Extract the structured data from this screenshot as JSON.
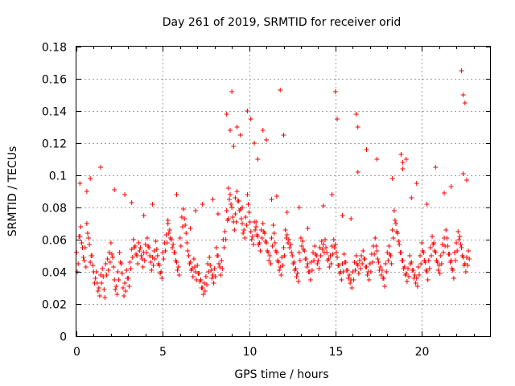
{
  "chart_data": {
    "type": "scatter",
    "title": "Day 261 of 2019, SRMTID for receiver orid",
    "xlabel": "GPS time / hours",
    "ylabel": "SRMTID / TECUs",
    "xlim": [
      0,
      24
    ],
    "ylim": [
      0,
      0.18
    ],
    "x_ticks": [
      0,
      5,
      10,
      15,
      20
    ],
    "x_tick_labels": [
      "0",
      "5",
      "10",
      "15",
      "20"
    ],
    "y_ticks": [
      0,
      0.02,
      0.04,
      0.06,
      0.08,
      0.1,
      0.12,
      0.14,
      0.16,
      0.18
    ],
    "y_tick_labels": [
      "0",
      "0.02",
      "0.04",
      "0.06",
      "0.08",
      "0.1",
      "0.12",
      "0.14",
      "0.16",
      "0.18"
    ],
    "grid": true,
    "marker": "+",
    "color": "#ff0000",
    "series": [
      {
        "name": "SRMTID",
        "x": [
          0.0,
          0.1,
          0.2,
          0.3,
          0.4,
          0.5,
          0.6,
          0.7,
          0.8,
          0.9,
          1.0,
          1.1,
          1.2,
          1.3,
          1.4,
          1.5,
          1.6,
          1.7,
          1.8,
          1.9,
          2.0,
          2.1,
          2.2,
          2.3,
          2.4,
          2.5,
          2.6,
          2.7,
          2.8,
          2.9,
          3.0,
          3.1,
          3.2,
          3.3,
          3.4,
          3.5,
          3.6,
          3.7,
          3.8,
          3.9,
          4.0,
          4.1,
          4.2,
          4.3,
          4.4,
          4.5,
          4.6,
          4.7,
          4.8,
          4.9,
          5.0,
          5.1,
          5.2,
          5.3,
          5.4,
          5.5,
          5.6,
          5.7,
          5.8,
          5.9,
          6.0,
          6.1,
          6.2,
          6.3,
          6.4,
          6.5,
          6.6,
          6.7,
          6.8,
          6.9,
          7.0,
          7.1,
          7.2,
          7.3,
          7.4,
          7.5,
          7.6,
          7.7,
          7.8,
          7.9,
          8.0,
          8.1,
          8.2,
          8.3,
          8.4,
          8.5,
          8.6,
          8.7,
          8.8,
          8.9,
          9.0,
          9.1,
          9.2,
          9.3,
          9.4,
          9.5,
          9.6,
          9.7,
          9.8,
          9.9,
          10.0,
          10.1,
          10.2,
          10.3,
          10.4,
          10.5,
          10.6,
          10.7,
          10.8,
          10.9,
          11.0,
          11.1,
          11.2,
          11.3,
          11.4,
          11.5,
          11.6,
          11.7,
          11.8,
          11.9,
          12.0,
          12.1,
          12.2,
          12.3,
          12.4,
          12.5,
          12.6,
          12.7,
          12.8,
          12.9,
          13.0,
          13.1,
          13.2,
          13.3,
          13.4,
          13.5,
          13.6,
          13.7,
          13.8,
          13.9,
          14.0,
          14.1,
          14.2,
          14.3,
          14.4,
          14.5,
          14.6,
          14.7,
          14.8,
          14.9,
          15.0,
          15.1,
          15.2,
          15.3,
          15.4,
          15.5,
          15.6,
          15.7,
          15.8,
          15.9,
          16.0,
          16.1,
          16.2,
          16.3,
          16.4,
          16.5,
          16.6,
          16.7,
          16.8,
          16.9,
          17.0,
          17.1,
          17.2,
          17.3,
          17.4,
          17.5,
          17.6,
          17.7,
          17.8,
          17.9,
          18.0,
          18.1,
          18.2,
          18.3,
          18.4,
          18.5,
          18.6,
          18.7,
          18.8,
          18.9,
          19.0,
          19.1,
          19.2,
          19.3,
          19.4,
          19.5,
          19.6,
          19.7,
          19.8,
          19.9,
          20.0,
          20.1,
          20.2,
          20.3,
          20.4,
          20.5,
          20.6,
          20.7,
          20.8,
          20.9,
          21.0,
          21.1,
          21.2,
          21.3,
          21.4,
          21.5,
          21.6,
          21.7,
          21.8,
          21.9,
          22.0,
          22.1,
          22.2,
          22.3,
          22.4,
          22.5,
          22.6,
          22.7,
          0.05,
          0.15,
          0.25,
          0.35,
          0.45,
          0.55,
          0.65,
          0.75,
          0.85,
          0.95,
          1.05,
          1.15,
          1.25,
          1.35,
          1.45,
          1.55,
          1.65,
          1.75,
          1.85,
          1.95,
          2.05,
          2.15,
          2.25,
          2.35,
          2.45,
          2.55,
          2.65,
          2.75,
          2.85,
          2.95,
          3.05,
          3.15,
          3.25,
          3.35,
          3.45,
          3.55,
          3.65,
          3.75,
          3.85,
          3.95,
          4.05,
          4.15,
          4.25,
          4.35,
          4.45,
          4.55,
          4.65,
          4.75,
          4.85,
          4.95,
          5.05,
          5.15,
          5.25,
          5.35,
          5.45,
          5.55,
          5.65,
          5.75,
          5.85,
          5.95,
          6.05,
          6.15,
          6.25,
          6.35,
          6.45,
          6.55,
          6.65,
          6.75,
          6.85,
          6.95,
          7.05,
          7.15,
          7.25,
          7.35,
          7.45,
          7.55,
          7.65,
          7.75,
          7.85,
          7.95,
          8.05,
          8.15,
          8.25,
          8.35,
          8.45,
          8.55,
          8.65,
          8.75,
          8.85,
          8.95,
          9.05,
          9.15,
          9.25,
          9.35,
          9.45,
          9.55,
          9.65,
          9.75,
          9.85,
          9.95,
          10.05,
          10.15,
          10.25,
          10.35,
          10.45,
          10.55,
          10.65,
          10.75,
          10.85,
          10.95,
          11.05,
          11.15,
          11.25,
          11.35,
          11.45,
          11.55,
          11.65,
          11.75,
          11.85,
          11.95,
          12.05,
          12.15,
          12.25,
          12.35,
          12.45,
          12.55,
          12.65,
          12.75,
          12.85,
          12.95,
          13.05,
          13.15,
          13.25,
          13.35,
          13.45,
          13.55,
          13.65,
          13.75,
          13.85,
          13.95,
          14.05,
          14.15,
          14.25,
          14.35,
          14.45,
          14.55,
          14.65,
          14.75,
          14.85,
          14.95,
          15.05,
          15.15,
          15.25,
          15.35,
          15.45,
          15.55,
          15.65,
          15.75,
          15.85,
          15.95,
          16.05,
          16.15,
          16.25,
          16.35,
          16.45,
          16.55,
          16.65,
          16.75,
          16.85,
          16.95,
          17.05,
          17.15,
          17.25,
          17.35,
          17.45,
          17.55,
          17.65,
          17.75,
          17.85,
          17.95,
          18.05,
          18.15,
          18.25,
          18.35,
          18.45,
          18.55,
          18.65,
          18.75,
          18.85,
          18.95,
          19.05,
          19.15,
          19.25,
          19.35,
          19.45,
          19.55,
          19.65,
          19.75,
          19.85,
          19.95,
          20.05,
          20.15,
          20.25,
          20.35,
          20.45,
          20.55,
          20.65,
          20.75,
          20.85,
          20.95,
          21.05,
          21.15,
          21.25,
          21.35,
          21.45,
          21.55,
          21.65,
          21.75,
          21.85,
          21.95,
          22.05,
          22.15,
          22.25,
          22.35,
          22.45,
          22.55,
          22.65,
          22.75,
          0.2,
          0.6,
          0.8,
          1.4,
          2.2,
          2.8,
          3.2,
          3.9,
          4.4,
          5.3,
          5.8,
          6.6,
          6.9,
          7.3,
          7.9,
          8.2,
          8.8,
          9.2,
          9.6,
          10.4,
          11.3,
          11.6,
          12.2,
          12.9,
          13.4,
          14.3,
          14.8,
          15.4,
          15.9,
          16.3,
          16.8,
          17.4,
          18.3,
          18.9,
          19.4,
          19.7,
          20.3,
          20.8,
          21.3,
          21.7,
          22.4,
          22.6,
          8.7,
          8.9,
          9.0,
          9.1,
          9.3,
          9.5,
          9.9,
          10.1,
          10.3,
          10.5,
          10.8,
          11.0,
          11.8,
          12.0,
          15.0,
          15.1,
          16.2,
          16.3,
          18.8,
          18.9,
          19.1,
          22.3,
          22.4,
          22.5
        ],
        "y": [
          0.052,
          0.045,
          0.062,
          0.058,
          0.049,
          0.055,
          0.07,
          0.061,
          0.046,
          0.05,
          0.04,
          0.036,
          0.033,
          0.03,
          0.038,
          0.042,
          0.029,
          0.045,
          0.048,
          0.052,
          0.058,
          0.049,
          0.035,
          0.031,
          0.04,
          0.052,
          0.045,
          0.03,
          0.033,
          0.041,
          0.036,
          0.046,
          0.054,
          0.06,
          0.056,
          0.05,
          0.058,
          0.055,
          0.048,
          0.052,
          0.057,
          0.061,
          0.055,
          0.046,
          0.049,
          0.053,
          0.059,
          0.05,
          0.044,
          0.04,
          0.052,
          0.058,
          0.063,
          0.07,
          0.066,
          0.06,
          0.057,
          0.052,
          0.046,
          0.043,
          0.061,
          0.074,
          0.079,
          0.069,
          0.058,
          0.05,
          0.046,
          0.042,
          0.048,
          0.04,
          0.044,
          0.039,
          0.035,
          0.03,
          0.033,
          0.037,
          0.045,
          0.049,
          0.041,
          0.038,
          0.042,
          0.055,
          0.05,
          0.043,
          0.047,
          0.06,
          0.065,
          0.078,
          0.092,
          0.088,
          0.08,
          0.071,
          0.076,
          0.09,
          0.084,
          0.079,
          0.07,
          0.066,
          0.074,
          0.088,
          0.077,
          0.065,
          0.062,
          0.071,
          0.068,
          0.062,
          0.058,
          0.066,
          0.07,
          0.064,
          0.058,
          0.052,
          0.05,
          0.061,
          0.069,
          0.058,
          0.052,
          0.046,
          0.043,
          0.049,
          0.055,
          0.066,
          0.063,
          0.06,
          0.057,
          0.05,
          0.046,
          0.042,
          0.039,
          0.052,
          0.061,
          0.059,
          0.053,
          0.048,
          0.045,
          0.04,
          0.046,
          0.052,
          0.056,
          0.05,
          0.047,
          0.055,
          0.059,
          0.057,
          0.06,
          0.052,
          0.048,
          0.05,
          0.056,
          0.06,
          0.057,
          0.049,
          0.044,
          0.04,
          0.045,
          0.051,
          0.046,
          0.041,
          0.038,
          0.035,
          0.04,
          0.046,
          0.05,
          0.044,
          0.047,
          0.05,
          0.053,
          0.048,
          0.043,
          0.04,
          0.045,
          0.051,
          0.056,
          0.061,
          0.053,
          0.046,
          0.043,
          0.041,
          0.036,
          0.045,
          0.052,
          0.056,
          0.05,
          0.066,
          0.078,
          0.07,
          0.064,
          0.057,
          0.052,
          0.047,
          0.043,
          0.039,
          0.042,
          0.05,
          0.046,
          0.041,
          0.038,
          0.036,
          0.043,
          0.05,
          0.058,
          0.052,
          0.046,
          0.04,
          0.047,
          0.055,
          0.062,
          0.058,
          0.052,
          0.046,
          0.044,
          0.05,
          0.057,
          0.061,
          0.066,
          0.056,
          0.051,
          0.047,
          0.041,
          0.052,
          0.058,
          0.065,
          0.062,
          0.055,
          0.049,
          0.045,
          0.049,
          0.053,
          0.04,
          0.062,
          0.068,
          0.055,
          0.047,
          0.043,
          0.064,
          0.057,
          0.05,
          0.044,
          0.033,
          0.04,
          0.028,
          0.025,
          0.033,
          0.037,
          0.024,
          0.038,
          0.041,
          0.046,
          0.051,
          0.043,
          0.029,
          0.026,
          0.035,
          0.046,
          0.039,
          0.025,
          0.028,
          0.036,
          0.031,
          0.042,
          0.049,
          0.055,
          0.051,
          0.045,
          0.053,
          0.05,
          0.043,
          0.047,
          0.052,
          0.056,
          0.05,
          0.041,
          0.044,
          0.048,
          0.054,
          0.045,
          0.039,
          0.036,
          0.048,
          0.053,
          0.058,
          0.064,
          0.061,
          0.055,
          0.052,
          0.047,
          0.041,
          0.038,
          0.056,
          0.068,
          0.073,
          0.064,
          0.053,
          0.045,
          0.041,
          0.037,
          0.043,
          0.035,
          0.039,
          0.034,
          0.03,
          0.026,
          0.028,
          0.032,
          0.04,
          0.044,
          0.036,
          0.033,
          0.037,
          0.05,
          0.045,
          0.038,
          0.042,
          0.055,
          0.06,
          0.072,
          0.085,
          0.082,
          0.074,
          0.066,
          0.071,
          0.084,
          0.078,
          0.073,
          0.064,
          0.061,
          0.069,
          0.082,
          0.071,
          0.06,
          0.057,
          0.066,
          0.063,
          0.057,
          0.053,
          0.061,
          0.065,
          0.059,
          0.053,
          0.047,
          0.045,
          0.056,
          0.064,
          0.053,
          0.047,
          0.041,
          0.038,
          0.044,
          0.05,
          0.061,
          0.058,
          0.055,
          0.052,
          0.045,
          0.041,
          0.037,
          0.034,
          0.047,
          0.056,
          0.054,
          0.048,
          0.043,
          0.04,
          0.035,
          0.041,
          0.047,
          0.051,
          0.045,
          0.042,
          0.05,
          0.054,
          0.052,
          0.055,
          0.047,
          0.043,
          0.045,
          0.051,
          0.055,
          0.052,
          0.044,
          0.039,
          0.035,
          0.04,
          0.046,
          0.041,
          0.036,
          0.033,
          0.03,
          0.035,
          0.041,
          0.045,
          0.039,
          0.042,
          0.045,
          0.048,
          0.043,
          0.038,
          0.035,
          0.04,
          0.046,
          0.051,
          0.056,
          0.048,
          0.041,
          0.038,
          0.036,
          0.031,
          0.04,
          0.047,
          0.051,
          0.045,
          0.061,
          0.072,
          0.065,
          0.059,
          0.052,
          0.047,
          0.042,
          0.038,
          0.034,
          0.037,
          0.045,
          0.041,
          0.036,
          0.033,
          0.031,
          0.038,
          0.045,
          0.053,
          0.047,
          0.041,
          0.035,
          0.042,
          0.05,
          0.057,
          0.053,
          0.047,
          0.041,
          0.039,
          0.045,
          0.052,
          0.056,
          0.061,
          0.051,
          0.046,
          0.042,
          0.036,
          0.047,
          0.053,
          0.06,
          0.057,
          0.05,
          0.044,
          0.04,
          0.044,
          0.048,
          0.095,
          0.09,
          0.098,
          0.105,
          0.091,
          0.088,
          0.083,
          0.075,
          0.082,
          0.072,
          0.088,
          0.067,
          0.078,
          0.082,
          0.085,
          0.076,
          0.073,
          0.086,
          0.08,
          0.071,
          0.085,
          0.087,
          0.077,
          0.08,
          0.067,
          0.081,
          0.088,
          0.075,
          0.073,
          0.102,
          0.116,
          0.11,
          0.098,
          0.104,
          0.086,
          0.095,
          0.082,
          0.105,
          0.089,
          0.093,
          0.101,
          0.097,
          0.138,
          0.128,
          0.152,
          0.118,
          0.13,
          0.125,
          0.14,
          0.135,
          0.12,
          0.11,
          0.128,
          0.122,
          0.153,
          0.125,
          0.152,
          0.135,
          0.138,
          0.13,
          0.113,
          0.108,
          0.11,
          0.165,
          0.15,
          0.145
        ]
      }
    ]
  }
}
